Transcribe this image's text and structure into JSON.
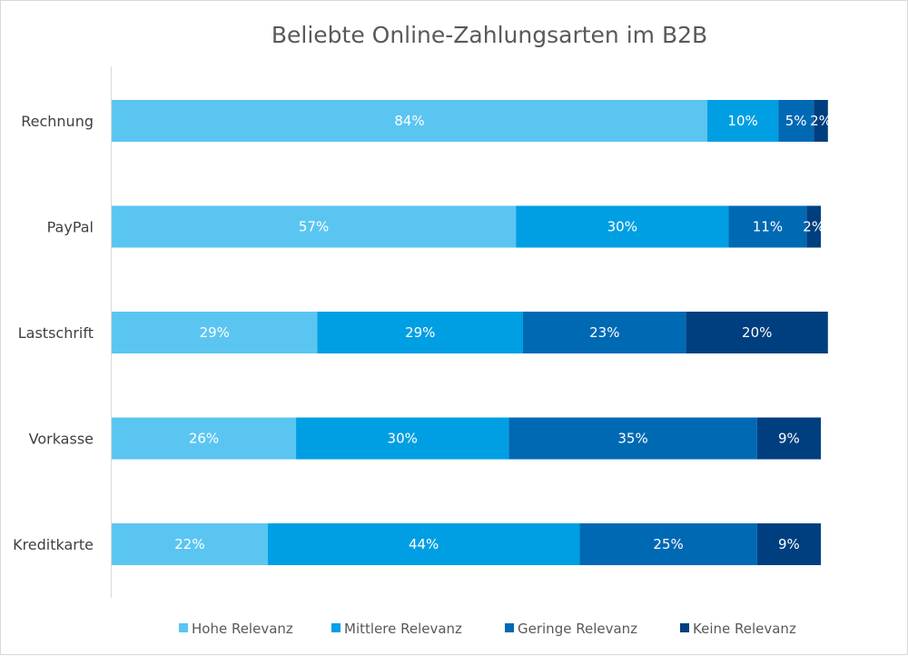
{
  "chart_data": {
    "type": "bar",
    "orientation": "horizontal",
    "stacked": true,
    "title": "Beliebte Online-Zahlungsarten im B2B",
    "categories": [
      "Rechnung",
      "PayPal",
      "Lastschrift",
      "Vorkasse",
      "Kreditkarte"
    ],
    "series": [
      {
        "name": "Hohe Relevanz",
        "color": "#5BC5F2",
        "values": [
          84,
          57,
          29,
          26,
          22
        ]
      },
      {
        "name": "Mittlere Relevanz",
        "color": "#009FE3",
        "values": [
          10,
          30,
          29,
          30,
          44
        ]
      },
      {
        "name": "Geringe Relevanz",
        "color": "#0069B4",
        "values": [
          5,
          11,
          23,
          35,
          25
        ]
      },
      {
        "name": "Keine Relevanz",
        "color": "#003F7F",
        "values": [
          2,
          2,
          20,
          9,
          9
        ]
      }
    ],
    "value_suffix": "%",
    "grid": false,
    "legend_position": "bottom"
  }
}
